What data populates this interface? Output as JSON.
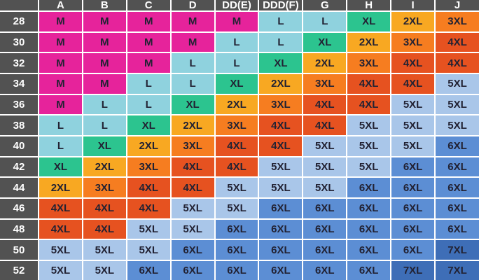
{
  "chart_data": {
    "type": "table",
    "columns": [
      "A",
      "B",
      "C",
      "D",
      "DD(E)",
      "DDD(F)",
      "G",
      "H",
      "I",
      "J"
    ],
    "row_labels": [
      "28",
      "30",
      "32",
      "34",
      "36",
      "38",
      "40",
      "42",
      "44",
      "46",
      "48",
      "50",
      "52"
    ],
    "values": [
      [
        "M",
        "M",
        "M",
        "M",
        "M",
        "L",
        "L",
        "XL",
        "2XL",
        "3XL"
      ],
      [
        "M",
        "M",
        "M",
        "M",
        "L",
        "L",
        "XL",
        "2XL",
        "3XL",
        "4XL"
      ],
      [
        "M",
        "M",
        "M",
        "L",
        "L",
        "XL",
        "2XL",
        "3XL",
        "4XL",
        "4XL"
      ],
      [
        "M",
        "M",
        "L",
        "L",
        "XL",
        "2XL",
        "3XL",
        "4XL",
        "4XL",
        "5XL"
      ],
      [
        "M",
        "L",
        "L",
        "XL",
        "2XL",
        "3XL",
        "4XL",
        "4XL",
        "5XL",
        "5XL"
      ],
      [
        "L",
        "L",
        "XL",
        "2XL",
        "3XL",
        "4XL",
        "4XL",
        "5XL",
        "5XL",
        "5XL"
      ],
      [
        "L",
        "XL",
        "2XL",
        "3XL",
        "4XL",
        "4XL",
        "5XL",
        "5XL",
        "5XL",
        "6XL"
      ],
      [
        "XL",
        "2XL",
        "3XL",
        "4XL",
        "4XL",
        "5XL",
        "5XL",
        "5XL",
        "6XL",
        "6XL"
      ],
      [
        "2XL",
        "3XL",
        "4XL",
        "4XL",
        "5XL",
        "5XL",
        "5XL",
        "6XL",
        "6XL",
        "6XL"
      ],
      [
        "4XL",
        "4XL",
        "4XL",
        "5XL",
        "5XL",
        "6XL",
        "6XL",
        "6XL",
        "6XL",
        "6XL"
      ],
      [
        "4XL",
        "4XL",
        "5XL",
        "5XL",
        "6XL",
        "6XL",
        "6XL",
        "6XL",
        "6XL",
        "6XL"
      ],
      [
        "5XL",
        "5XL",
        "5XL",
        "6XL",
        "6XL",
        "6XL",
        "6XL",
        "6XL",
        "6XL",
        "7XL"
      ],
      [
        "5XL",
        "5XL",
        "6XL",
        "6XL",
        "6XL",
        "6XL",
        "6XL",
        "6XL",
        "7XL",
        "7XL"
      ]
    ],
    "cell_colors": {
      "M": "#e6239b",
      "L": "#8fd2de",
      "XL": "#2cc48f",
      "2XL": "#f8a822",
      "3XL": "#f67d20",
      "4XL": "#e65220",
      "5XL": "#a9c6e9",
      "6XL": "#5c8ed4",
      "7XL": "#3e6eb7"
    },
    "header_bg": "#525252",
    "header_text_color": "#ffffff",
    "cell_text_color": "#222233",
    "grid_color": "#ffffff"
  }
}
